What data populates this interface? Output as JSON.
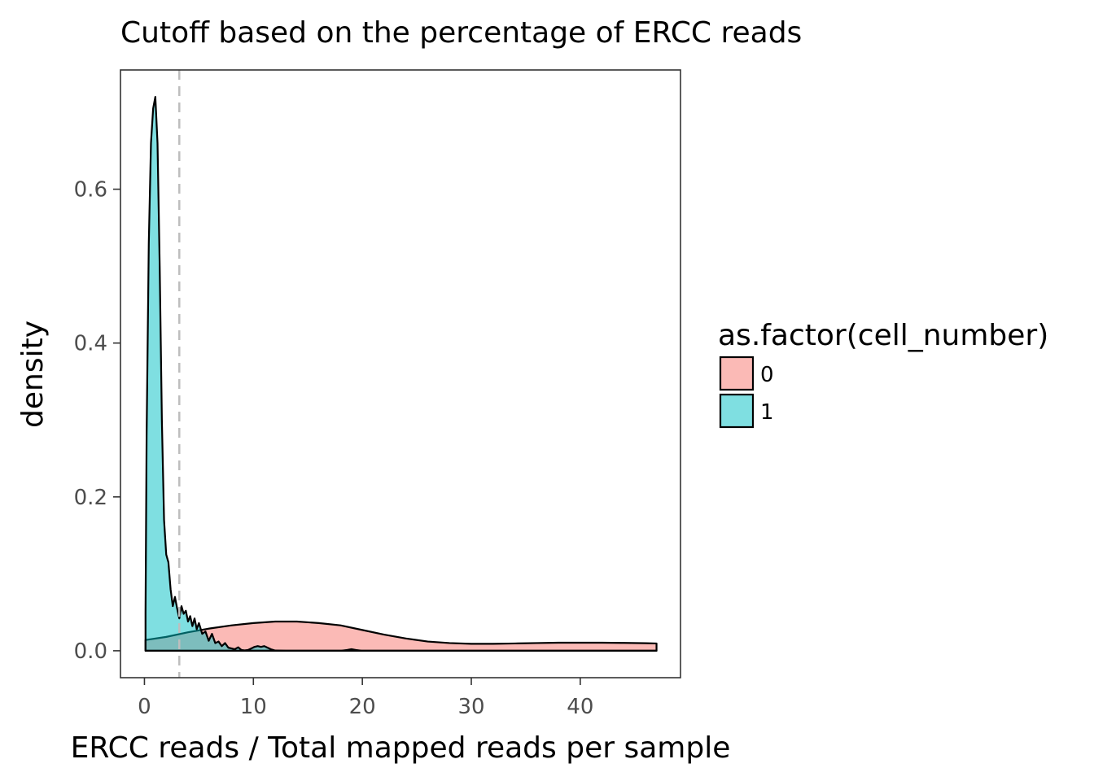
{
  "chart_data": {
    "type": "area",
    "subtype": "density",
    "title": "Cutoff based on the percentage of ERCC reads",
    "xlabel": "ERCC reads / Total mapped reads per sample",
    "ylabel": "density",
    "xlim": [
      -2.2,
      49.2
    ],
    "ylim": [
      -0.035,
      0.755
    ],
    "x_ticks": [
      0,
      10,
      20,
      30,
      40
    ],
    "x_tick_labels": [
      "0",
      "10",
      "20",
      "30",
      "40"
    ],
    "y_ticks": [
      0.0,
      0.2,
      0.4,
      0.6
    ],
    "y_tick_labels": [
      "0.0",
      "0.2",
      "0.4",
      "0.6"
    ],
    "grid": false,
    "legend": {
      "title": "as.factor(cell_number)",
      "position": "right",
      "entries": [
        "0",
        "1"
      ]
    },
    "cutoff_line": {
      "x": 3.2,
      "color": "#bebebe",
      "style": "dashed"
    },
    "series": [
      {
        "name": "0",
        "fill": "#F8766D",
        "opacity": 0.5,
        "x": [
          0.1,
          2,
          4,
          6,
          8,
          10,
          12,
          14,
          16,
          18,
          20,
          22,
          24,
          26,
          28,
          30,
          32,
          34,
          36,
          38,
          40,
          42,
          44,
          46,
          47
        ],
        "y": [
          0.014,
          0.018,
          0.024,
          0.029,
          0.033,
          0.036,
          0.038,
          0.038,
          0.036,
          0.033,
          0.027,
          0.021,
          0.016,
          0.012,
          0.01,
          0.009,
          0.009,
          0.0095,
          0.01,
          0.0105,
          0.0105,
          0.0105,
          0.0102,
          0.0098,
          0.0095
        ]
      },
      {
        "name": "1",
        "fill": "#00BFC4",
        "opacity": 0.5,
        "x": [
          0.1,
          0.2,
          0.4,
          0.6,
          0.8,
          1.0,
          1.2,
          1.4,
          1.6,
          1.8,
          2.0,
          2.2,
          2.4,
          2.6,
          2.8,
          3.0,
          3.2,
          3.4,
          3.6,
          3.8,
          4.0,
          4.2,
          4.4,
          4.6,
          4.8,
          5.0,
          5.3,
          5.6,
          5.9,
          6.2,
          6.5,
          6.8,
          7.1,
          7.4,
          7.7,
          8.0,
          8.3,
          8.6,
          8.9,
          9.2,
          9.5,
          9.8,
          10.1,
          10.4,
          10.7,
          11.0,
          11.3,
          11.6,
          12,
          13,
          14,
          15,
          16,
          17,
          18,
          18.6,
          19,
          19.4,
          20,
          25,
          30,
          35,
          40,
          45,
          47
        ],
        "y": [
          0.05,
          0.28,
          0.53,
          0.66,
          0.705,
          0.72,
          0.66,
          0.5,
          0.3,
          0.17,
          0.125,
          0.115,
          0.08,
          0.058,
          0.07,
          0.055,
          0.042,
          0.058,
          0.048,
          0.052,
          0.038,
          0.045,
          0.032,
          0.042,
          0.028,
          0.036,
          0.022,
          0.025,
          0.013,
          0.022,
          0.01,
          0.012,
          0.006,
          0.01,
          0.004,
          0.003,
          0.002,
          0.0045,
          0.001,
          0.0005,
          0.001,
          0.003,
          0.005,
          0.006,
          0.005,
          0.006,
          0.004,
          0.002,
          0.0003,
          0.0001,
          0.0,
          0.0,
          0.0,
          0.0,
          0.0,
          0.001,
          0.002,
          0.001,
          0.0,
          0.0,
          0.0,
          0.0,
          0.0,
          0.0,
          0.0
        ]
      }
    ]
  }
}
